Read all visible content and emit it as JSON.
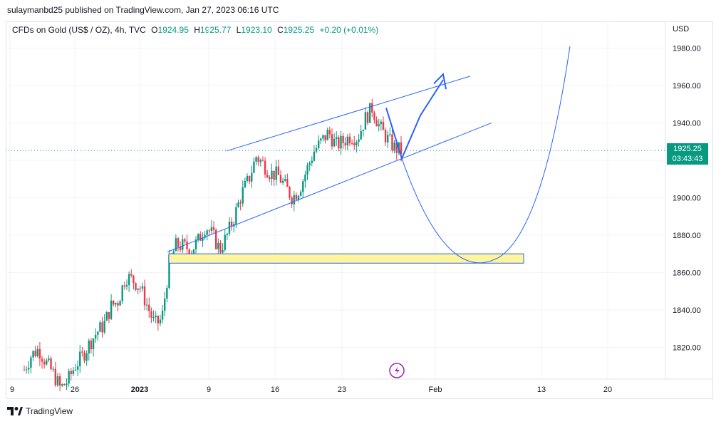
{
  "header": {
    "published": "sulaymanbd25 published on TradingView.com, Jan 27, 2023 06:16 UTC"
  },
  "legend": {
    "symbol": "CFDs on Gold (US$ / OZ), 4h, TVC",
    "open_label": "O",
    "open": "1924.95",
    "high_label": "H",
    "high": "1925.77",
    "low_label": "L",
    "low": "1923.10",
    "close_label": "C",
    "close": "1925.25",
    "change": "+0.20 (+0.01%)"
  },
  "price_axis": {
    "currency": "USD",
    "ticks": [
      "1980.00",
      "1960.00",
      "1940.00",
      "1920.00",
      "1900.00",
      "1880.00",
      "1860.00",
      "1840.00",
      "1820.00"
    ],
    "last_price": "1925.25",
    "countdown": "03:43:43"
  },
  "time_axis": {
    "ticks": [
      "9",
      "26",
      "2023",
      "9",
      "16",
      "23",
      "Feb",
      "13",
      "20"
    ]
  },
  "footer": {
    "brand": "TradingView"
  },
  "colors": {
    "up": "#089981",
    "down": "#f23645",
    "drawing": "#2962ff",
    "zone_fill": "#fff59d"
  },
  "chart_data": {
    "type": "candlestick",
    "symbol": "XAUUSD",
    "timeframe": "4h",
    "ylim": [
      1803,
      1992
    ],
    "y_ticks": [
      1820,
      1840,
      1860,
      1880,
      1900,
      1920,
      1940,
      1960,
      1980
    ],
    "x_ticks": [
      "9",
      "26",
      "2023",
      "9",
      "16",
      "23",
      "Feb",
      "13",
      "20"
    ],
    "close_path": [
      1808,
      1816,
      1819,
      1812,
      1806,
      1798,
      1802,
      1810,
      1815,
      1822,
      1828,
      1832,
      1842,
      1845,
      1858,
      1856,
      1852,
      1842,
      1832,
      1835,
      1865,
      1875,
      1874,
      1872,
      1877,
      1885,
      1880,
      1872,
      1880,
      1890,
      1902,
      1910,
      1922,
      1918,
      1913,
      1912,
      1906,
      1900,
      1905,
      1915,
      1925,
      1930,
      1935,
      1928,
      1930,
      1933,
      1932,
      1942,
      1948,
      1938,
      1932,
      1927,
      1925
    ],
    "last_close": 1925.25,
    "annotations": {
      "support_zone": [
        1865,
        1870
      ],
      "channel_upper": [
        [
          1925,
          1965
        ]
      ],
      "channel_lower": [
        [
          1871,
          1940
        ]
      ],
      "forecast_arrow_up": "to ~1965",
      "forecast_curve": "drop to ~1866 then rally above 1980"
    }
  }
}
